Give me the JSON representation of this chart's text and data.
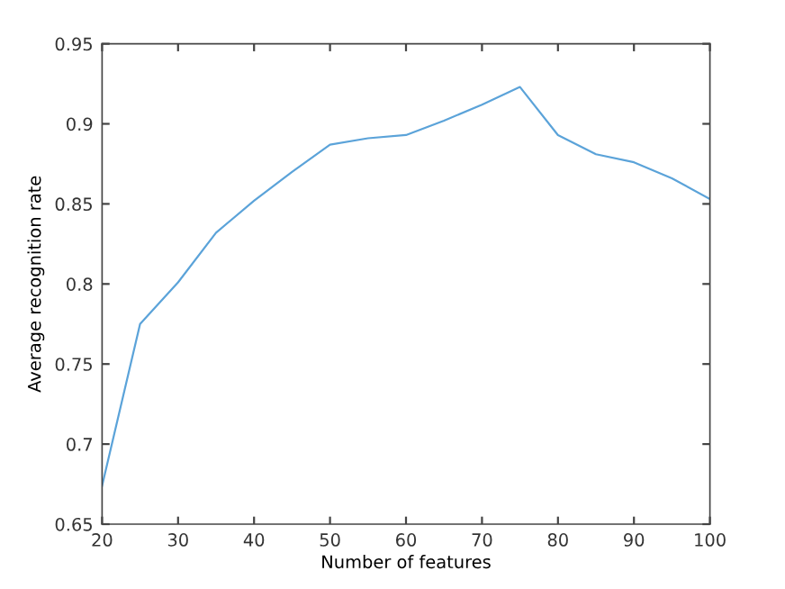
{
  "chart_data": {
    "type": "line",
    "xlabel": "Number of features",
    "ylabel": "Average recognition rate",
    "x": [
      20,
      25,
      30,
      35,
      40,
      45,
      50,
      55,
      60,
      65,
      70,
      75,
      80,
      85,
      90,
      95,
      100
    ],
    "series": [
      {
        "color": "#5ba3d9",
        "values": [
          0.674,
          0.775,
          0.801,
          0.832,
          0.852,
          0.87,
          0.887,
          0.891,
          0.893,
          0.902,
          0.912,
          0.923,
          0.893,
          0.881,
          0.876,
          0.866,
          0.853
        ]
      }
    ],
    "xlim": [
      20,
      100
    ],
    "xticks": [
      20,
      30,
      40,
      50,
      60,
      70,
      80,
      90,
      100
    ],
    "ylim": [
      0.65,
      0.95
    ],
    "yticks": [
      0.65,
      0.7,
      0.75,
      0.8,
      0.85,
      0.9,
      0.95
    ],
    "grid": false,
    "legend": false,
    "marker": "none",
    "line_style": "solid"
  }
}
